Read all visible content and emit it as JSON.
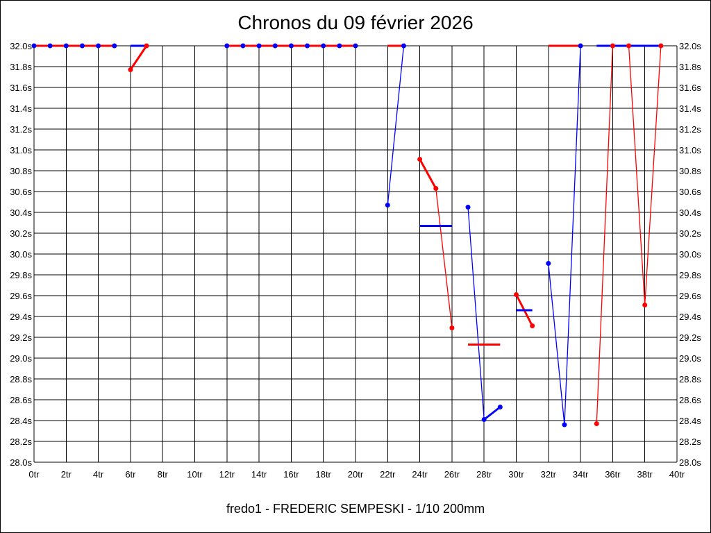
{
  "chart_data": {
    "type": "line",
    "title": "Chronos du 09 février 2026",
    "footer": "fredo1 - FREDERIC SEMPESKI - 1/10 200mm",
    "xlim": [
      0,
      40
    ],
    "ylim": [
      28.0,
      32.0
    ],
    "x_ticks": [
      "0tr",
      "2tr",
      "4tr",
      "6tr",
      "8tr",
      "10tr",
      "12tr",
      "14tr",
      "16tr",
      "18tr",
      "20tr",
      "22tr",
      "24tr",
      "26tr",
      "28tr",
      "30tr",
      "32tr",
      "34tr",
      "36tr",
      "38tr",
      "40tr"
    ],
    "y_ticks": [
      "32.0s",
      "31.8s",
      "31.6s",
      "31.4s",
      "31.2s",
      "31.0s",
      "30.8s",
      "30.6s",
      "30.4s",
      "30.2s",
      "30.0s",
      "29.8s",
      "29.6s",
      "29.4s",
      "29.2s",
      "29.0s",
      "28.8s",
      "28.6s",
      "28.4s",
      "28.2s",
      "28.0s"
    ],
    "grid": true,
    "colors": {
      "red": "#ff0000",
      "blue": "#0000ff"
    },
    "lines": [
      {
        "color": "red",
        "style": "thick",
        "points": [
          [
            0,
            32.0
          ],
          [
            5,
            32.0
          ]
        ]
      },
      {
        "color": "blue",
        "style": "thick",
        "points": [
          [
            6,
            32.0
          ],
          [
            7,
            32.0
          ]
        ]
      },
      {
        "color": "red",
        "style": "thick",
        "points": [
          [
            6,
            31.77
          ],
          [
            7,
            32.0
          ]
        ]
      },
      {
        "color": "red",
        "style": "thick",
        "points": [
          [
            12,
            32.0
          ],
          [
            20,
            32.0
          ]
        ]
      },
      {
        "color": "red",
        "style": "thick",
        "points": [
          [
            22,
            32.0
          ],
          [
            23,
            32.0
          ]
        ]
      },
      {
        "color": "blue",
        "style": "thin",
        "points": [
          [
            22,
            30.47
          ],
          [
            23,
            32.0
          ]
        ]
      },
      {
        "color": "red",
        "style": "thick",
        "points": [
          [
            24,
            30.91
          ],
          [
            25,
            30.63
          ]
        ]
      },
      {
        "color": "red",
        "style": "thin",
        "points": [
          [
            25,
            30.63
          ],
          [
            26,
            29.29
          ]
        ]
      },
      {
        "color": "blue",
        "style": "thick",
        "points": [
          [
            24,
            30.27
          ],
          [
            26,
            30.27
          ]
        ]
      },
      {
        "color": "blue",
        "style": "thin",
        "points": [
          [
            27,
            30.45
          ],
          [
            28,
            28.41
          ]
        ]
      },
      {
        "color": "blue",
        "style": "thick",
        "points": [
          [
            28,
            28.41
          ],
          [
            29,
            28.53
          ]
        ]
      },
      {
        "color": "red",
        "style": "thick",
        "points": [
          [
            27,
            29.13
          ],
          [
            29,
            29.13
          ]
        ]
      },
      {
        "color": "red",
        "style": "thick",
        "points": [
          [
            30,
            29.61
          ],
          [
            31,
            29.31
          ]
        ]
      },
      {
        "color": "blue",
        "style": "thick",
        "points": [
          [
            30,
            29.46
          ],
          [
            31,
            29.46
          ]
        ]
      },
      {
        "color": "blue",
        "style": "thin",
        "points": [
          [
            32,
            29.91
          ],
          [
            33,
            28.36
          ],
          [
            34,
            32.0
          ]
        ]
      },
      {
        "color": "red",
        "style": "thick",
        "points": [
          [
            32,
            32.0
          ],
          [
            34,
            32.0
          ]
        ]
      },
      {
        "color": "red",
        "style": "thin",
        "points": [
          [
            35,
            28.37
          ],
          [
            36,
            32.0
          ]
        ]
      },
      {
        "color": "red",
        "style": "thin",
        "points": [
          [
            37,
            32.0
          ],
          [
            38,
            29.51
          ],
          [
            39,
            32.0
          ]
        ]
      },
      {
        "color": "blue",
        "style": "thick",
        "points": [
          [
            35,
            32.0
          ],
          [
            39,
            32.0
          ]
        ]
      }
    ],
    "points": [
      {
        "lap": 0,
        "time": 32.0,
        "color": "blue"
      },
      {
        "lap": 1,
        "time": 32.0,
        "color": "blue"
      },
      {
        "lap": 2,
        "time": 32.0,
        "color": "blue"
      },
      {
        "lap": 3,
        "time": 32.0,
        "color": "blue"
      },
      {
        "lap": 4,
        "time": 32.0,
        "color": "blue"
      },
      {
        "lap": 5,
        "time": 32.0,
        "color": "blue"
      },
      {
        "lap": 6,
        "time": 31.77,
        "color": "red"
      },
      {
        "lap": 7,
        "time": 32.0,
        "color": "red"
      },
      {
        "lap": 12,
        "time": 32.0,
        "color": "blue"
      },
      {
        "lap": 13,
        "time": 32.0,
        "color": "blue"
      },
      {
        "lap": 14,
        "time": 32.0,
        "color": "blue"
      },
      {
        "lap": 15,
        "time": 32.0,
        "color": "blue"
      },
      {
        "lap": 16,
        "time": 32.0,
        "color": "blue"
      },
      {
        "lap": 17,
        "time": 32.0,
        "color": "blue"
      },
      {
        "lap": 18,
        "time": 32.0,
        "color": "blue"
      },
      {
        "lap": 19,
        "time": 32.0,
        "color": "blue"
      },
      {
        "lap": 20,
        "time": 32.0,
        "color": "blue"
      },
      {
        "lap": 22,
        "time": 30.47,
        "color": "blue"
      },
      {
        "lap": 23,
        "time": 32.0,
        "color": "blue"
      },
      {
        "lap": 24,
        "time": 30.91,
        "color": "red"
      },
      {
        "lap": 25,
        "time": 30.63,
        "color": "red"
      },
      {
        "lap": 26,
        "time": 29.29,
        "color": "red"
      },
      {
        "lap": 27,
        "time": 30.45,
        "color": "blue"
      },
      {
        "lap": 28,
        "time": 28.41,
        "color": "blue"
      },
      {
        "lap": 29,
        "time": 28.53,
        "color": "blue"
      },
      {
        "lap": 30,
        "time": 29.61,
        "color": "red"
      },
      {
        "lap": 31,
        "time": 29.31,
        "color": "red"
      },
      {
        "lap": 32,
        "time": 29.91,
        "color": "blue"
      },
      {
        "lap": 33,
        "time": 28.36,
        "color": "blue"
      },
      {
        "lap": 34,
        "time": 32.0,
        "color": "blue"
      },
      {
        "lap": 35,
        "time": 28.37,
        "color": "red"
      },
      {
        "lap": 36,
        "time": 32.0,
        "color": "red"
      },
      {
        "lap": 37,
        "time": 32.0,
        "color": "red"
      },
      {
        "lap": 38,
        "time": 29.51,
        "color": "red"
      },
      {
        "lap": 39,
        "time": 32.0,
        "color": "red"
      }
    ]
  }
}
